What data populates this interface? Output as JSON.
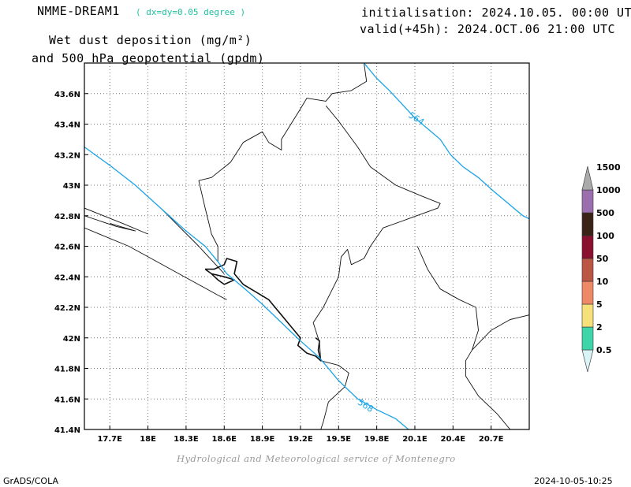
{
  "header": {
    "model": "NMME-DREAM1",
    "resolution": "( dx=dy=0.05 degree )",
    "title_line1": "Wet dust deposition (mg/m²)",
    "title_line2": "and 500 hPa geopotential (gpdm)",
    "init": "initialisation: 2024.10.05. 00:00 UTC",
    "valid": "valid(+45h): 2024.OCT.06 21:00 UTC"
  },
  "footer": {
    "credit": "Hydrological and Meteorological service of Montenegro",
    "software": "GrADS/COLA",
    "timestamp": "2024-10-05-10:25"
  },
  "chart_data": {
    "type": "map",
    "xlim": [
      17.5,
      21.0
    ],
    "ylim": [
      41.4,
      43.8
    ],
    "x_ticks": [
      17.7,
      18.0,
      18.3,
      18.6,
      18.9,
      19.2,
      19.5,
      19.8,
      20.1,
      20.4,
      20.7
    ],
    "x_tick_labels": [
      "17.7E",
      "18E",
      "18.3E",
      "18.6E",
      "18.9E",
      "19.2E",
      "19.5E",
      "19.8E",
      "20.1E",
      "20.4E",
      "20.7E"
    ],
    "y_ticks": [
      41.4,
      41.6,
      41.8,
      42.0,
      42.2,
      42.4,
      42.6,
      42.8,
      43.0,
      43.2,
      43.4,
      43.6
    ],
    "y_tick_labels": [
      "41.4N",
      "41.6N",
      "41.8N",
      "42N",
      "42.2N",
      "42.4N",
      "42.6N",
      "42.8N",
      "43N",
      "43.2N",
      "43.4N",
      "43.6N"
    ],
    "grid": true,
    "contour_color": "#1aa3e8",
    "contours": [
      {
        "label": "564",
        "label_at": [
          20.1,
          43.42
        ],
        "points": [
          [
            19.7,
            43.8
          ],
          [
            19.8,
            43.7
          ],
          [
            19.9,
            43.62
          ],
          [
            20.0,
            43.53
          ],
          [
            20.1,
            43.44
          ],
          [
            20.2,
            43.37
          ],
          [
            20.3,
            43.3
          ],
          [
            20.38,
            43.2
          ],
          [
            20.48,
            43.12
          ],
          [
            20.6,
            43.05
          ],
          [
            20.72,
            42.96
          ],
          [
            20.85,
            42.87
          ],
          [
            20.95,
            42.8
          ],
          [
            21.0,
            42.78
          ]
        ]
      },
      {
        "label": "568",
        "label_at": [
          19.7,
          41.54
        ],
        "points": [
          [
            17.5,
            43.25
          ],
          [
            17.7,
            43.13
          ],
          [
            17.9,
            43.0
          ],
          [
            18.1,
            42.85
          ],
          [
            18.3,
            42.7
          ],
          [
            18.45,
            42.6
          ],
          [
            18.55,
            42.5
          ],
          [
            18.62,
            42.42
          ],
          [
            18.75,
            42.33
          ],
          [
            18.9,
            42.22
          ],
          [
            19.05,
            42.1
          ],
          [
            19.2,
            41.98
          ],
          [
            19.35,
            41.87
          ],
          [
            19.5,
            41.72
          ],
          [
            19.65,
            41.6
          ],
          [
            19.8,
            41.53
          ],
          [
            19.95,
            41.47
          ],
          [
            20.05,
            41.4
          ]
        ]
      }
    ],
    "boundaries": [
      [
        [
          17.5,
          42.72
        ],
        [
          17.85,
          42.6
        ],
        [
          18.2,
          42.44
        ],
        [
          18.55,
          42.28
        ],
        [
          18.62,
          42.25
        ]
      ],
      [
        [
          17.5,
          42.85
        ],
        [
          17.8,
          42.75
        ],
        [
          18.0,
          42.68
        ]
      ],
      [
        [
          17.5,
          42.8
        ],
        [
          17.75,
          42.73
        ],
        [
          17.9,
          42.7
        ],
        [
          17.7,
          42.75
        ]
      ],
      [
        [
          18.1,
          42.85
        ],
        [
          18.4,
          42.6
        ],
        [
          18.6,
          42.42
        ]
      ],
      [
        [
          19.7,
          43.8
        ],
        [
          19.72,
          43.68
        ],
        [
          19.6,
          43.62
        ],
        [
          19.45,
          43.6
        ],
        [
          19.4,
          43.55
        ],
        [
          19.25,
          43.57
        ],
        [
          19.2,
          43.5
        ],
        [
          19.05,
          43.3
        ],
        [
          19.05,
          43.23
        ],
        [
          18.95,
          43.28
        ],
        [
          18.9,
          43.35
        ],
        [
          18.75,
          43.28
        ],
        [
          18.65,
          43.15
        ],
        [
          18.5,
          43.05
        ],
        [
          18.4,
          43.03
        ],
        [
          18.45,
          42.85
        ],
        [
          18.48,
          42.75
        ],
        [
          18.5,
          42.68
        ],
        [
          18.55,
          42.6
        ],
        [
          18.55,
          42.5
        ]
      ],
      [
        [
          19.4,
          43.52
        ],
        [
          19.5,
          43.42
        ],
        [
          19.65,
          43.25
        ],
        [
          19.75,
          43.12
        ],
        [
          19.95,
          43.0
        ],
        [
          20.15,
          42.93
        ],
        [
          20.3,
          42.88
        ],
        [
          20.28,
          42.85
        ],
        [
          20.05,
          42.78
        ],
        [
          19.85,
          42.72
        ],
        [
          19.75,
          42.6
        ],
        [
          19.7,
          42.52
        ],
        [
          19.6,
          42.48
        ],
        [
          19.57,
          42.58
        ],
        [
          19.52,
          42.53
        ],
        [
          19.5,
          42.4
        ],
        [
          19.38,
          42.2
        ],
        [
          19.3,
          42.1
        ],
        [
          19.35,
          41.97
        ],
        [
          19.36,
          41.85
        ]
      ],
      [
        [
          20.12,
          42.6
        ],
        [
          20.2,
          42.45
        ],
        [
          20.3,
          42.32
        ],
        [
          20.45,
          42.25
        ],
        [
          20.58,
          42.2
        ],
        [
          20.6,
          42.05
        ],
        [
          20.55,
          41.92
        ],
        [
          20.5,
          41.85
        ],
        [
          20.5,
          41.75
        ],
        [
          20.6,
          41.62
        ],
        [
          20.75,
          41.5
        ],
        [
          20.85,
          41.4
        ]
      ],
      [
        [
          20.55,
          41.92
        ],
        [
          20.7,
          42.05
        ],
        [
          20.85,
          42.12
        ],
        [
          21.0,
          42.15
        ]
      ],
      [
        [
          19.36,
          41.85
        ],
        [
          19.5,
          41.82
        ],
        [
          19.58,
          41.77
        ],
        [
          19.55,
          41.68
        ],
        [
          19.42,
          41.58
        ],
        [
          19.38,
          41.45
        ],
        [
          19.36,
          41.4
        ]
      ],
      [
        [
          18.45,
          42.45
        ],
        [
          18.52,
          42.45
        ],
        [
          18.6,
          42.48
        ],
        [
          18.62,
          42.52
        ],
        [
          18.7,
          42.5
        ],
        [
          18.68,
          42.42
        ],
        [
          18.75,
          42.35
        ],
        [
          18.85,
          42.3
        ],
        [
          18.95,
          42.25
        ],
        [
          19.0,
          42.2
        ],
        [
          19.05,
          42.15
        ],
        [
          19.1,
          42.1
        ],
        [
          19.15,
          42.05
        ],
        [
          19.2,
          42.0
        ],
        [
          19.18,
          41.95
        ],
        [
          19.25,
          41.9
        ],
        [
          19.32,
          41.88
        ],
        [
          19.36,
          41.85
        ],
        [
          19.34,
          41.92
        ],
        [
          19.35,
          41.98
        ],
        [
          19.32,
          42.0
        ]
      ],
      [
        [
          18.45,
          42.45
        ],
        [
          18.5,
          42.42
        ],
        [
          18.6,
          42.4
        ],
        [
          18.68,
          42.38
        ],
        [
          18.6,
          42.35
        ],
        [
          18.55,
          42.38
        ],
        [
          18.5,
          42.42
        ]
      ]
    ],
    "colorbar": {
      "labels": [
        "0.5",
        "2",
        "5",
        "10",
        "50",
        "100",
        "500",
        "1000",
        "1500"
      ],
      "colors": [
        "#d8f4f4",
        "#3ed6a8",
        "#f5e07a",
        "#ee8866",
        "#bb5544",
        "#8a1030",
        "#3a2418",
        "#9b6fae",
        "#aaaaaa"
      ]
    }
  }
}
